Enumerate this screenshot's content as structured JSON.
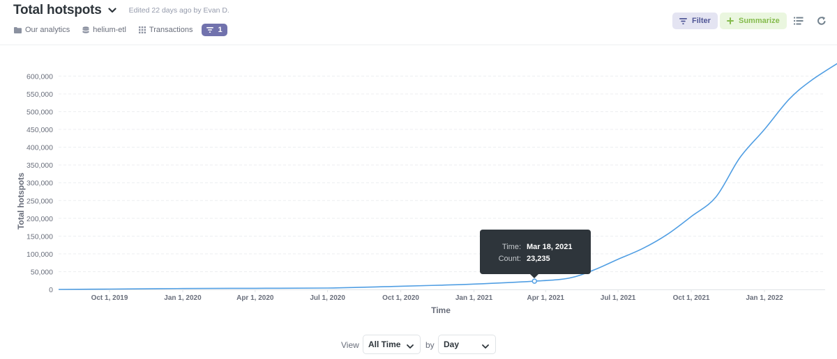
{
  "header": {
    "title": "Total hotspots",
    "edited": "Edited 22 days ago by Evan D.",
    "breadcrumbs": [
      {
        "label": "Our analytics",
        "icon": "folder-icon"
      },
      {
        "label": "helium-etl",
        "icon": "database-icon"
      },
      {
        "label": "Transactions",
        "icon": "grid-icon"
      }
    ],
    "filter_count": "1",
    "filter_button": "Filter",
    "summarize_button": "Summarize",
    "colors": {
      "filter_pill": "#7172ad",
      "filter_bg": "#e4e4f2",
      "summarize_bg": "#eaf6df",
      "summarize_text": "#84bb4c",
      "line": "#509ee3"
    }
  },
  "chart_data": {
    "type": "line",
    "xlabel": "Time",
    "ylabel": "Total hotspots",
    "x_ticks": [
      "Oct 1, 2019",
      "Jan 1, 2020",
      "Apr 1, 2020",
      "Jul 1, 2020",
      "Oct 1, 2020",
      "Jan 1, 2021",
      "Apr 1, 2021",
      "Jul 1, 2021",
      "Oct 1, 2021",
      "Jan 1, 2022"
    ],
    "y_ticks": [
      "0",
      "50,000",
      "100,000",
      "150,000",
      "200,000",
      "250,000",
      "300,000",
      "350,000",
      "400,000",
      "450,000",
      "500,000",
      "550,000",
      "600,000"
    ],
    "ylim": [
      0,
      640000
    ],
    "grid": "horizontal dashed",
    "series": [
      {
        "name": "Count",
        "points": [
          {
            "x": "2019-07-29",
            "y": 0
          },
          {
            "x": "2019-10-01",
            "y": 1000
          },
          {
            "x": "2020-01-01",
            "y": 2500
          },
          {
            "x": "2020-04-01",
            "y": 3200
          },
          {
            "x": "2020-07-01",
            "y": 4000
          },
          {
            "x": "2020-10-01",
            "y": 9000
          },
          {
            "x": "2020-11-20",
            "y": 12000
          },
          {
            "x": "2021-01-01",
            "y": 15000
          },
          {
            "x": "2021-03-18",
            "y": 23235
          },
          {
            "x": "2021-05-01",
            "y": 32000
          },
          {
            "x": "2021-06-01",
            "y": 55000
          },
          {
            "x": "2021-07-01",
            "y": 85000
          },
          {
            "x": "2021-08-01",
            "y": 115000
          },
          {
            "x": "2021-09-01",
            "y": 155000
          },
          {
            "x": "2021-10-01",
            "y": 205000
          },
          {
            "x": "2021-11-01",
            "y": 260000
          },
          {
            "x": "2021-12-01",
            "y": 370000
          },
          {
            "x": "2022-01-01",
            "y": 450000
          },
          {
            "x": "2022-02-01",
            "y": 535000
          },
          {
            "x": "2022-03-01",
            "y": 588000
          },
          {
            "x": "2022-04-08",
            "y": 643000
          }
        ]
      }
    ],
    "tooltip": {
      "time_label": "Time:",
      "time_value": "Mar 18, 2021",
      "count_label": "Count:",
      "count_value": "23,235",
      "point": {
        "x": "2021-03-18",
        "y": 23235
      }
    }
  },
  "footer": {
    "view_label": "View",
    "view_value": "All Time",
    "by_label": "by",
    "unit_value": "Day"
  }
}
